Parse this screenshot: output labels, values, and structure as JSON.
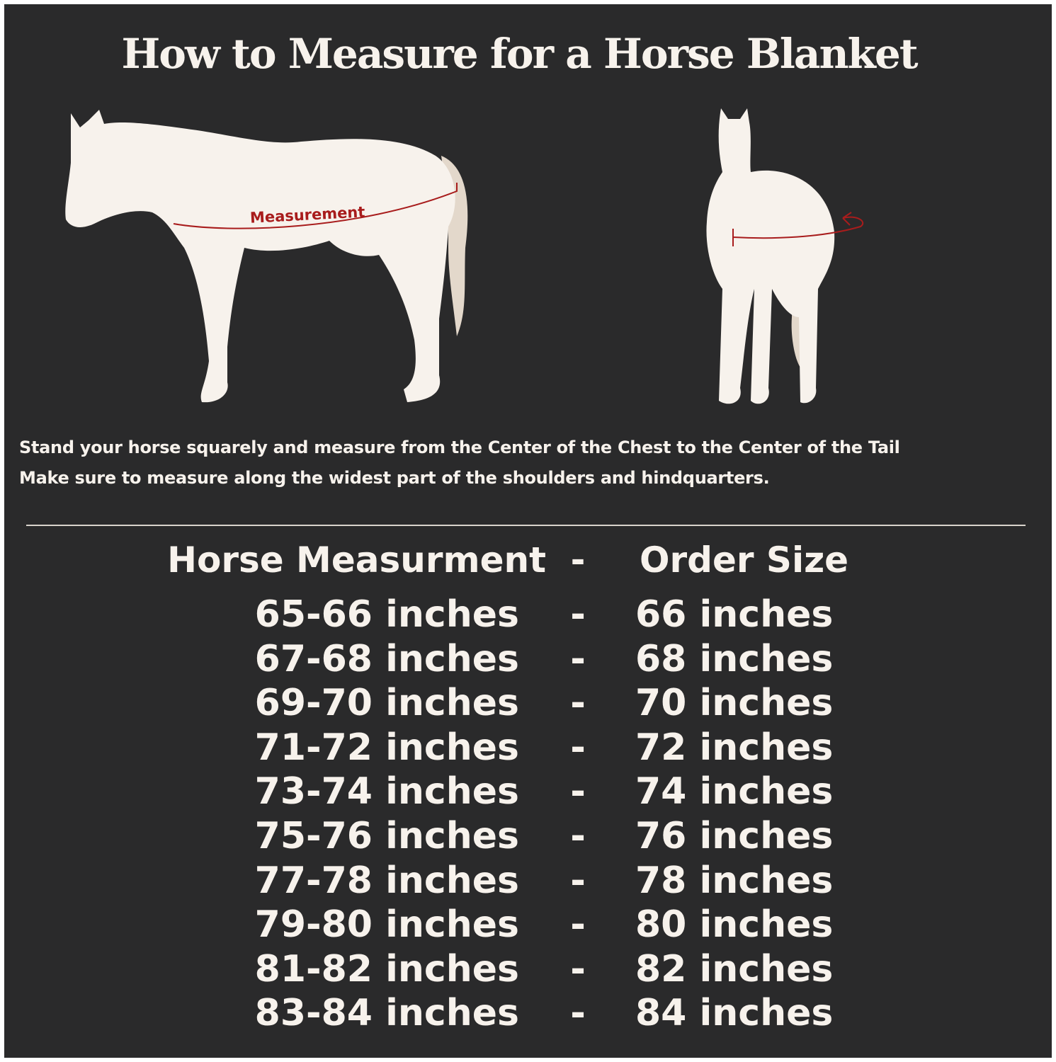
{
  "title": "How to Measure for a Horse Blanket",
  "illustration": {
    "measurement_label": "Measurement",
    "colors": {
      "background": "#2a2a2b",
      "horse": "#f7f2ec",
      "tail": "#e3d8cb",
      "measure_line": "#a81c1c"
    }
  },
  "instructions": [
    "Stand your horse squarely and measure from the Center of the Chest to the Center of the Tail",
    "Make sure to measure along the widest part of the shoulders and hindquarters."
  ],
  "table": {
    "header": {
      "left": "Horse Measurment",
      "separator": "-",
      "right": "Order Size"
    },
    "rows": [
      {
        "measurement": "65-66 inches",
        "separator": "-",
        "size": "66 inches"
      },
      {
        "measurement": "67-68 inches",
        "separator": "-",
        "size": "68 inches"
      },
      {
        "measurement": "69-70 inches",
        "separator": "-",
        "size": "70 inches"
      },
      {
        "measurement": "71-72 inches",
        "separator": "-",
        "size": "72 inches"
      },
      {
        "measurement": "73-74 inches",
        "separator": "-",
        "size": "74 inches"
      },
      {
        "measurement": "75-76 inches",
        "separator": "-",
        "size": "76 inches"
      },
      {
        "measurement": "77-78 inches",
        "separator": "-",
        "size": "78 inches"
      },
      {
        "measurement": "79-80 inches",
        "separator": "-",
        "size": "80 inches"
      },
      {
        "measurement": "81-82 inches",
        "separator": "-",
        "size": "82 inches"
      },
      {
        "measurement": "83-84 inches",
        "separator": "-",
        "size": "84 inches"
      }
    ]
  }
}
